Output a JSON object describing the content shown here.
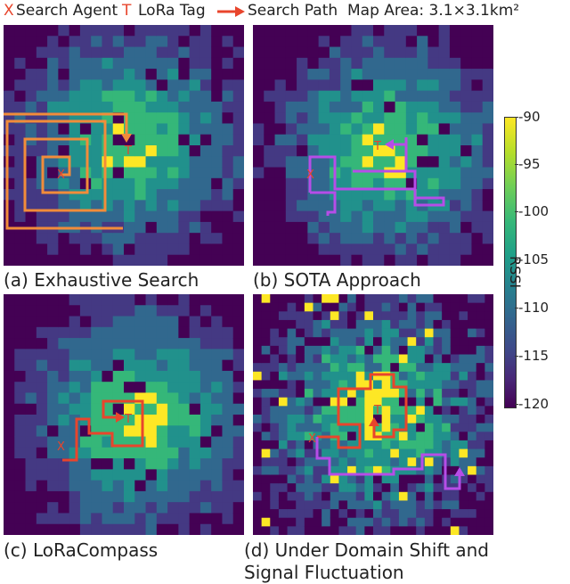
{
  "legend": {
    "agent_symbol": "X",
    "agent_label": "Search Agent",
    "tag_symbol": "T",
    "tag_label": "LoRa Tag",
    "path_label": "Search Path",
    "area_label": "Map Area: 3.1×3.1km²"
  },
  "panels": [
    {
      "caption": "(a) Exhaustive Search",
      "path_color": "#f28c3a",
      "tag_symbol": "T",
      "agent_symbol": "X"
    },
    {
      "caption": "(b) SOTA Approach",
      "path_color": "#b64de8",
      "tag_symbol": "T",
      "agent_symbol": "X"
    },
    {
      "caption": "(c) LoRaCompass",
      "path_color": "#e8452c",
      "tag_symbol": "T",
      "agent_symbol": "X"
    },
    {
      "caption_line1": "(d) Under Domain Shift and",
      "caption_line2": "Signal Fluctuation",
      "path_color": "#e8452c",
      "secondary_path_color": "#b64de8",
      "tag_symbol": "T",
      "agent_symbol": "X"
    }
  ],
  "colorbar": {
    "label": "RSSI",
    "ticks": [
      "-90",
      "-95",
      "-100",
      "-105",
      "-110",
      "-115",
      "-120"
    ],
    "colors": [
      "#fde725",
      "#35b779",
      "#21918c",
      "#31688e",
      "#443983",
      "#440154"
    ]
  }
}
